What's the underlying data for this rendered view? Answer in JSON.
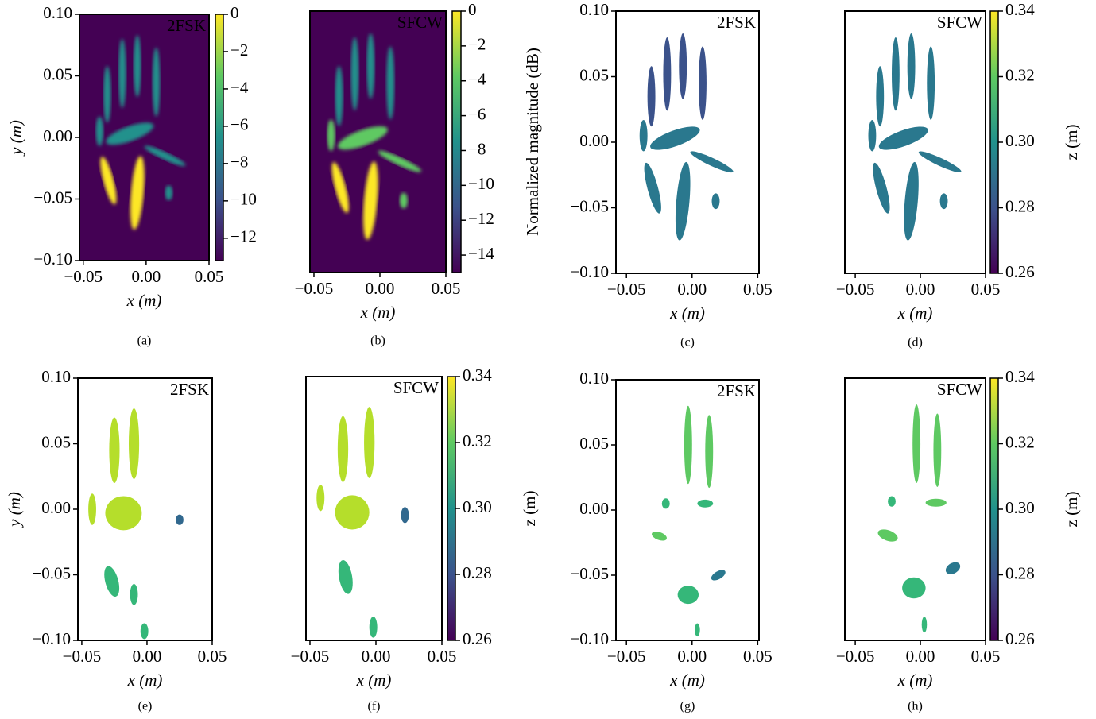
{
  "chart_data": [
    {
      "type": "heatmap",
      "panel_label": "2FSK",
      "caption": "(a)",
      "xlabel": "x (m)",
      "ylabel": "y (m)",
      "xlim": [
        -0.053,
        0.05
      ],
      "ylim": [
        -0.1,
        0.1
      ],
      "xticks": [
        {
          "value": -0.05,
          "label": "−0.05"
        },
        {
          "value": 0,
          "label": "0.00"
        },
        0.05
      ],
      "yticks": [
        {
          "value": -0.1,
          "label": "−0.10"
        },
        {
          "value": -0.05,
          "label": "−0.05"
        },
        {
          "value": 0,
          "label": "0.00"
        },
        0.05,
        {
          "value": 0.1,
          "label": "0.10"
        }
      ],
      "colorbar": {
        "lim": [
          -13.2,
          0
        ],
        "ticks": [
          {
            "value": -12,
            "label": "−12"
          },
          {
            "value": -10,
            "label": "−10"
          },
          {
            "value": -8,
            "label": "−8"
          },
          {
            "value": -6,
            "label": "−6"
          },
          {
            "value": -4,
            "label": "−4"
          },
          {
            "value": -2,
            "label": "−2"
          },
          0
        ]
      }
    },
    {
      "type": "heatmap",
      "panel_label": "SFCW",
      "caption": "(b)",
      "xlabel": "x (m)",
      "xlim": [
        -0.053,
        0.05
      ],
      "ylim": [
        -0.1,
        0.1
      ],
      "xticks": [
        {
          "value": -0.05,
          "label": "−0.05"
        },
        {
          "value": 0,
          "label": "0.00"
        },
        0.05
      ],
      "colorbar": {
        "label": "Normalized magnitude (dB)",
        "lim": [
          -15,
          0
        ],
        "ticks": [
          {
            "value": -14,
            "label": "−14"
          },
          {
            "value": -12,
            "label": "−12"
          },
          {
            "value": -10,
            "label": "−10"
          },
          {
            "value": -8,
            "label": "−8"
          },
          {
            "value": -6,
            "label": "−6"
          },
          {
            "value": -4,
            "label": "−4"
          },
          {
            "value": -2,
            "label": "−2"
          },
          0
        ]
      }
    },
    {
      "type": "depth",
      "panel_label": "2FSK",
      "caption": "(c)",
      "xlabel": "x (m)",
      "xlim": [
        -0.058,
        0.051
      ],
      "ylim": [
        -0.1,
        0.1
      ],
      "xticks": [
        {
          "value": -0.05,
          "label": "−0.05"
        },
        {
          "value": 0,
          "label": "0.00"
        },
        0.05
      ],
      "yticks": [
        {
          "value": -0.1,
          "label": "−0.10"
        },
        {
          "value": -0.05,
          "label": "−0.05"
        },
        {
          "value": 0,
          "label": "0.00"
        },
        0.05,
        {
          "value": 0.1,
          "label": "0.10"
        }
      ]
    },
    {
      "type": "depth",
      "panel_label": "SFCW",
      "caption": "(d)",
      "xlabel": "x (m)",
      "xlim": [
        -0.058,
        0.05
      ],
      "ylim": [
        -0.1,
        0.1
      ],
      "xticks": [
        {
          "value": -0.05,
          "label": "−0.05"
        },
        {
          "value": 0,
          "label": "0.00"
        },
        0.05
      ],
      "colorbar": {
        "label": "z (m)",
        "lim": [
          0.26,
          0.34
        ],
        "ticks": [
          0.26,
          0.28,
          {
            "value": 0.3,
            "label": "0.30"
          },
          0.32,
          0.34
        ]
      }
    },
    {
      "type": "depth",
      "panel_label": "2FSK",
      "caption": "(e)",
      "xlabel": "x (m)",
      "ylabel": "y (m)",
      "xlim": [
        -0.053,
        0.05
      ],
      "ylim": [
        -0.1,
        0.1
      ],
      "xticks": [
        {
          "value": -0.05,
          "label": "−0.05"
        },
        {
          "value": 0,
          "label": "0.00"
        },
        0.05
      ],
      "yticks": [
        {
          "value": -0.1,
          "label": "−0.10"
        },
        {
          "value": -0.05,
          "label": "−0.05"
        },
        {
          "value": 0,
          "label": "0.00"
        },
        0.05,
        {
          "value": 0.1,
          "label": "0.10"
        }
      ]
    },
    {
      "type": "depth",
      "panel_label": "SFCW",
      "caption": "(f)",
      "xlabel": "x (m)",
      "xlim": [
        -0.053,
        0.05
      ],
      "ylim": [
        -0.1,
        0.1
      ],
      "xticks": [
        {
          "value": -0.05,
          "label": "−0.05"
        },
        {
          "value": 0,
          "label": "0.00"
        },
        0.05
      ],
      "colorbar": {
        "label": "z (m)",
        "lim": [
          0.26,
          0.34
        ],
        "ticks": [
          0.26,
          0.28,
          {
            "value": 0.3,
            "label": "0.30"
          },
          0.32,
          0.34
        ]
      }
    },
    {
      "type": "depth",
      "panel_label": "2FSK",
      "caption": "(g)",
      "xlabel": "x (m)",
      "xlim": [
        -0.058,
        0.051
      ],
      "ylim": [
        -0.1,
        0.1
      ],
      "xticks": [
        {
          "value": -0.05,
          "label": "−0.05"
        },
        {
          "value": 0,
          "label": "0.00"
        },
        0.05
      ],
      "yticks": [
        {
          "value": -0.1,
          "label": "−0.10"
        },
        {
          "value": -0.05,
          "label": "−0.05"
        },
        {
          "value": 0,
          "label": "0.00"
        },
        0.05,
        {
          "value": 0.1,
          "label": "0.10"
        }
      ]
    },
    {
      "type": "depth",
      "panel_label": "SFCW",
      "caption": "(h)",
      "xlabel": "x (m)",
      "xlim": [
        -0.058,
        0.05
      ],
      "ylim": [
        -0.1,
        0.1
      ],
      "xticks": [
        {
          "value": -0.05,
          "label": "−0.05"
        },
        {
          "value": 0,
          "label": "0.00"
        },
        0.05
      ],
      "colorbar": {
        "label": "z (m)",
        "lim": [
          0.26,
          0.34
        ],
        "ticks": [
          0.26,
          0.28,
          {
            "value": 0.3,
            "label": "0.30"
          },
          0.32,
          0.34
        ]
      }
    }
  ]
}
